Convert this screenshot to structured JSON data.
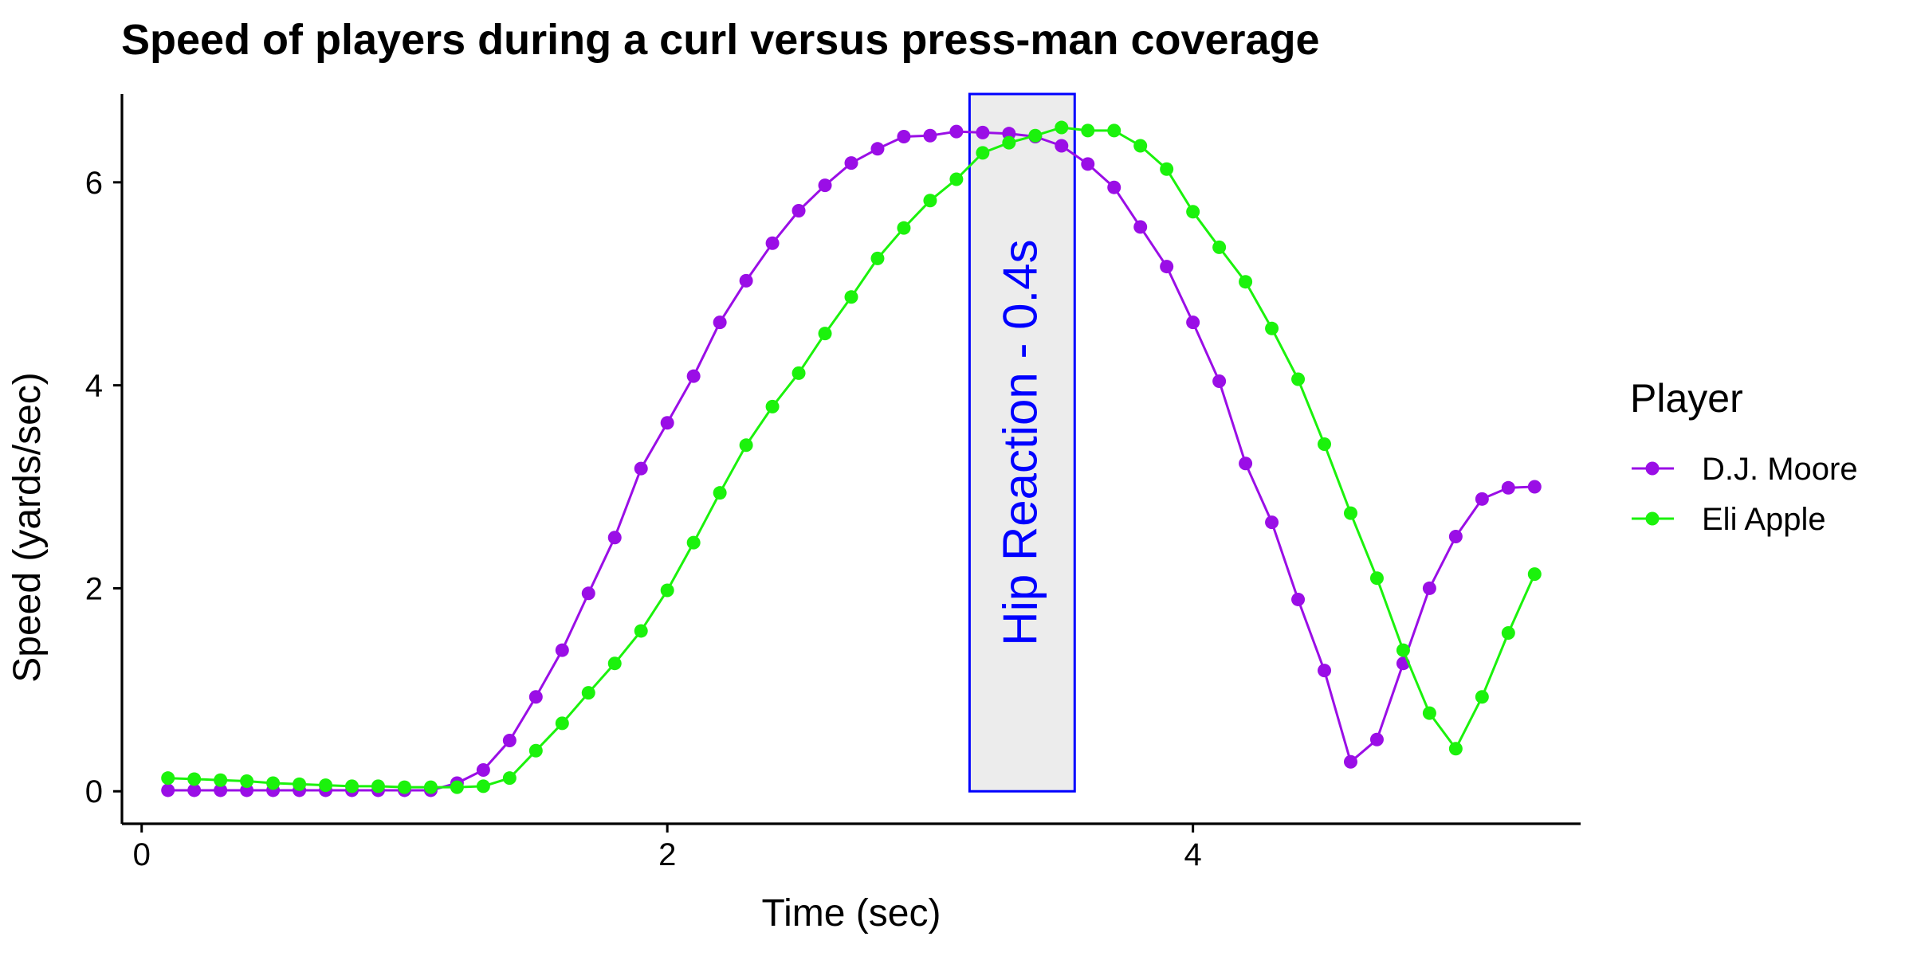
{
  "chart_data": {
    "type": "line",
    "title": "Speed of players during a curl versus press-man coverage",
    "xlabel": "Time (sec)",
    "ylabel": "Speed (yards/sec)",
    "xlim": [
      -0.075,
      5.475
    ],
    "ylim": [
      -0.32,
      6.87
    ],
    "x_ticks": [
      0,
      2,
      4
    ],
    "y_ticks": [
      0,
      2,
      4,
      6
    ],
    "grid": false,
    "legend": {
      "title": "Player",
      "position": "right"
    },
    "annotation": {
      "label": "Hip Reaction - 0.4s",
      "x_range": [
        3.15,
        3.55
      ],
      "y_range": [
        0,
        6.87
      ],
      "fill": "#ececec",
      "color": "#0000ff"
    },
    "x": [
      0.1,
      0.2,
      0.3,
      0.4,
      0.5,
      0.6,
      0.7,
      0.8,
      0.9,
      1.0,
      1.1,
      1.2,
      1.3,
      1.4,
      1.5,
      1.6,
      1.7,
      1.8,
      1.9,
      2.0,
      2.1,
      2.2,
      2.3,
      2.4,
      2.5,
      2.6,
      2.7,
      2.8,
      2.9,
      3.0,
      3.1,
      3.2,
      3.3,
      3.4,
      3.5,
      3.6,
      3.7,
      3.8,
      3.9,
      4.0,
      4.1,
      4.2,
      4.3,
      4.4,
      4.5,
      4.6,
      4.7,
      4.8,
      4.9,
      5.0,
      5.1,
      5.2,
      5.3
    ],
    "series": [
      {
        "name": "D.J. Moore",
        "color": "#9a0ee6",
        "values": [
          0.01,
          0.01,
          0.01,
          0.01,
          0.01,
          0.01,
          0.01,
          0.01,
          0.01,
          0.01,
          0.01,
          0.08,
          0.21,
          0.5,
          0.93,
          1.39,
          1.95,
          2.5,
          3.18,
          3.63,
          4.09,
          4.62,
          5.03,
          5.4,
          5.72,
          5.97,
          6.19,
          6.33,
          6.45,
          6.46,
          6.5,
          6.49,
          6.48,
          6.45,
          6.36,
          6.18,
          5.95,
          5.56,
          5.17,
          4.62,
          4.04,
          3.23,
          2.65,
          1.89,
          1.19,
          0.29,
          0.51,
          1.26,
          2.0,
          2.51,
          2.88,
          2.99,
          3.0
        ]
      },
      {
        "name": "Eli Apple",
        "color": "#1bf20c",
        "values": [
          0.13,
          0.12,
          0.11,
          0.1,
          0.08,
          0.07,
          0.06,
          0.05,
          0.05,
          0.04,
          0.04,
          0.04,
          0.05,
          0.13,
          0.4,
          0.67,
          0.97,
          1.26,
          1.58,
          1.98,
          2.45,
          2.94,
          3.41,
          3.79,
          4.12,
          4.51,
          4.87,
          5.25,
          5.55,
          5.82,
          6.03,
          6.29,
          6.39,
          6.46,
          6.54,
          6.51,
          6.51,
          6.36,
          6.13,
          5.71,
          5.36,
          5.02,
          4.56,
          4.06,
          3.42,
          2.74,
          2.1,
          1.39,
          0.77,
          0.42,
          0.93,
          1.56,
          2.14
        ]
      }
    ]
  }
}
